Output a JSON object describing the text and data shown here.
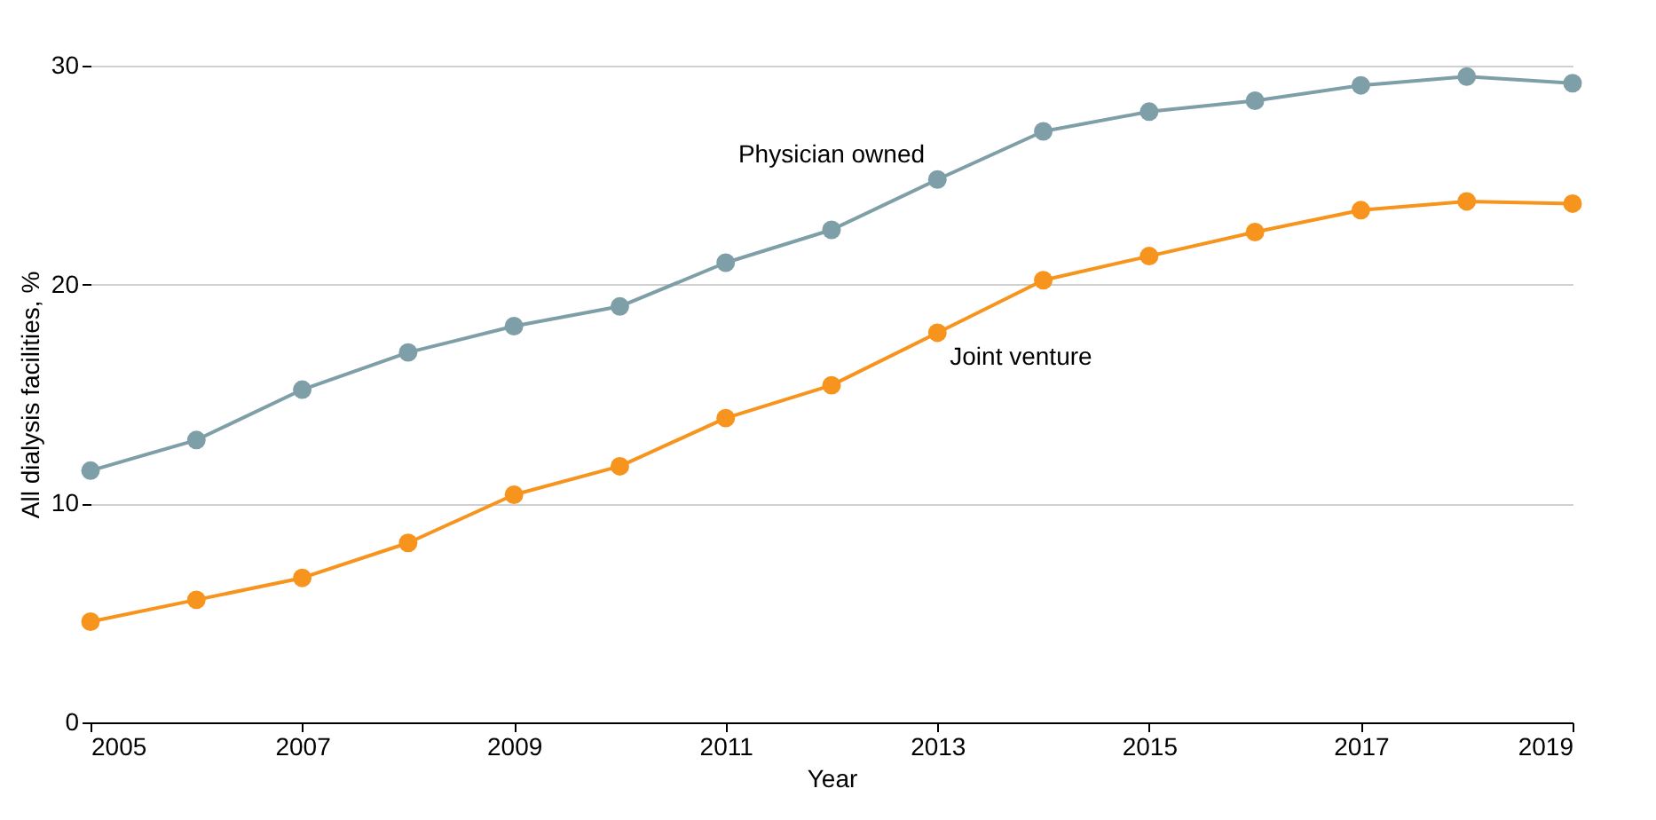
{
  "chart_data": {
    "type": "line",
    "xlabel": "Year",
    "ylabel": "All dialysis facilities, %",
    "x": [
      2005,
      2006,
      2007,
      2008,
      2009,
      2010,
      2011,
      2012,
      2013,
      2014,
      2015,
      2016,
      2017,
      2018,
      2019
    ],
    "series": [
      {
        "name": "Physician owned",
        "color": "#7f9fa8",
        "values": [
          11.5,
          12.9,
          15.2,
          16.9,
          18.1,
          19.0,
          21.0,
          22.5,
          24.8,
          27.0,
          27.9,
          28.4,
          29.1,
          29.5,
          29.2
        ]
      },
      {
        "name": "Joint venture",
        "color": "#f7941d",
        "values": [
          4.6,
          5.6,
          6.6,
          8.2,
          10.4,
          11.7,
          13.9,
          15.4,
          17.8,
          20.2,
          21.3,
          22.4,
          23.4,
          23.8,
          23.7
        ]
      }
    ],
    "xlim": [
      2005,
      2019
    ],
    "xticks": [
      2005,
      2007,
      2009,
      2011,
      2013,
      2015,
      2017,
      2019
    ],
    "ylim": [
      0,
      30
    ],
    "yticks": [
      0,
      10,
      20,
      30
    ],
    "grid": "y",
    "marker": "circle",
    "line_style": "solid"
  }
}
